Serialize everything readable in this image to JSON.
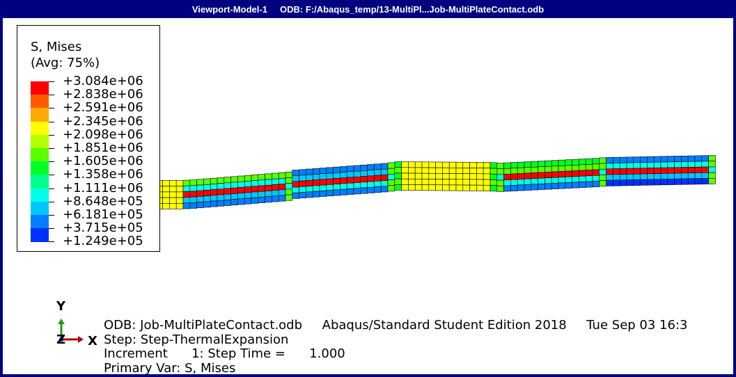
{
  "window": {
    "title": "Viewport-Model-1     ODB: F:/Abaqus_temp/13-MultiPl...Job-MultiPlateContact.odb"
  },
  "legend": {
    "title": "S, Mises",
    "subtitle": "(Avg: 75%)",
    "ticks": [
      "+3.084e+06",
      "+2.838e+06",
      "+2.591e+06",
      "+2.345e+06",
      "+2.098e+06",
      "+1.851e+06",
      "+1.605e+06",
      "+1.358e+06",
      "+1.111e+06",
      "+8.648e+05",
      "+6.181e+05",
      "+3.715e+05",
      "+1.249e+05"
    ],
    "colors": [
      "#ff0000",
      "#ff5a00",
      "#ffaa00",
      "#ffff00",
      "#b3ff00",
      "#5aff00",
      "#00ff22",
      "#00ff8c",
      "#00ffe6",
      "#00c8ff",
      "#0080ff",
      "#0030ff"
    ]
  },
  "triad": {
    "y_label": "Y",
    "z_label": "Z",
    "x_label": "X"
  },
  "info": {
    "line1": "ODB: Job-MultiPlateContact.odb     Abaqus/Standard Student Edition 2018     Tue Sep 03 16:3",
    "line2": "Step: Step-ThermalExpansion",
    "line3": "Increment      1: Step Time =      1.000",
    "line4": "Primary Var: S, Mises"
  }
}
